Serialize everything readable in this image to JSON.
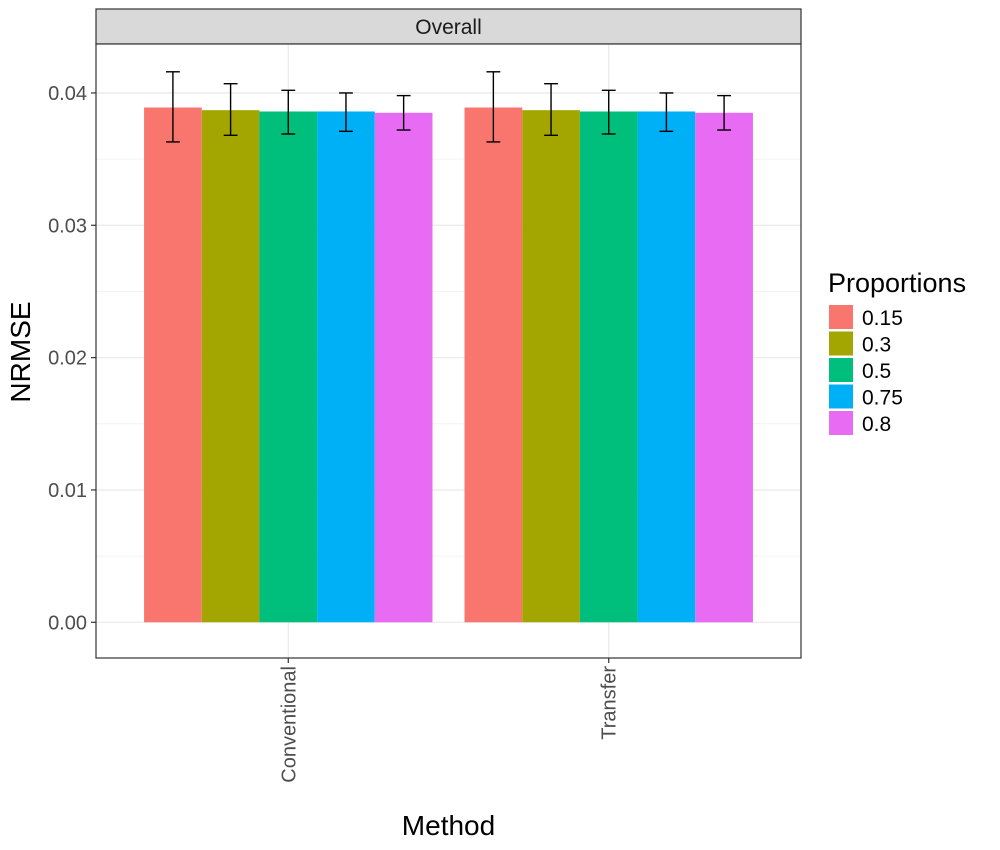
{
  "chart_data": {
    "type": "bar",
    "facet_title": "Overall",
    "xlabel": "Method",
    "ylabel": "NRMSE",
    "categories": [
      "Conventional",
      "Transfer"
    ],
    "ylim": [
      -0.0027,
      0.0437
    ],
    "yticks": [
      0.0,
      0.01,
      0.02,
      0.03,
      0.04
    ],
    "ytick_labels": [
      "0.00",
      "0.01",
      "0.02",
      "0.03",
      "0.04"
    ],
    "grid": true,
    "legend": {
      "title": "Proportions",
      "position": "right"
    },
    "series": [
      {
        "name": "0.15",
        "color": "#F8766D",
        "values": [
          0.0389,
          0.0389
        ],
        "lower": [
          0.0363,
          0.0363
        ],
        "upper": [
          0.0416,
          0.0416
        ]
      },
      {
        "name": "0.3",
        "color": "#A3A500",
        "values": [
          0.0387,
          0.0387
        ],
        "lower": [
          0.0368,
          0.0368
        ],
        "upper": [
          0.0407,
          0.0407
        ]
      },
      {
        "name": "0.5",
        "color": "#00BF7D",
        "values": [
          0.0386,
          0.0386
        ],
        "lower": [
          0.0369,
          0.0369
        ],
        "upper": [
          0.0402,
          0.0402
        ]
      },
      {
        "name": "0.75",
        "color": "#00B0F6",
        "values": [
          0.0386,
          0.0386
        ],
        "lower": [
          0.0371,
          0.0371
        ],
        "upper": [
          0.04,
          0.04
        ]
      },
      {
        "name": "0.8",
        "color": "#E76BF3",
        "values": [
          0.0385,
          0.0385
        ],
        "lower": [
          0.0372,
          0.0372
        ],
        "upper": [
          0.0398,
          0.0398
        ]
      }
    ]
  }
}
